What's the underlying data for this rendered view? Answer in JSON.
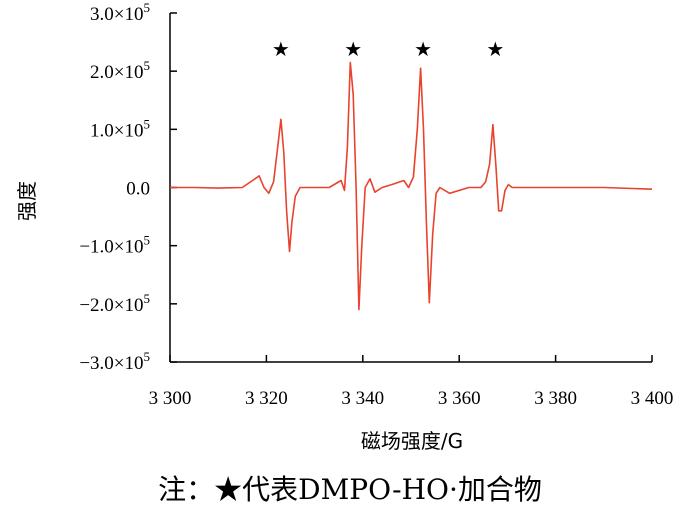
{
  "chart_data": {
    "type": "line",
    "xlabel": "磁场强度/G",
    "ylabel": "强度",
    "xlim": [
      3300,
      3400
    ],
    "ylim": [
      -300000,
      300000
    ],
    "x_ticks": [
      3300,
      3320,
      3340,
      3360,
      3380,
      3400
    ],
    "x_tick_labels": [
      "3 300",
      "3 320",
      "3 340",
      "3 360",
      "3 380",
      "3 400"
    ],
    "y_ticks": [
      300000,
      200000,
      100000,
      0,
      -100000,
      -200000,
      -300000
    ],
    "y_tick_labels": [
      {
        "mantissa": "3.0×10",
        "exp": "5"
      },
      {
        "mantissa": "2.0×10",
        "exp": "5"
      },
      {
        "mantissa": "1.0×10",
        "exp": "5"
      },
      {
        "mantissa": "0.0",
        "exp": ""
      },
      {
        "mantissa": "−1.0×10",
        "exp": "5"
      },
      {
        "mantissa": "−2.0×10",
        "exp": "5"
      },
      {
        "mantissa": "−3.0×10",
        "exp": "5"
      }
    ],
    "line_color": "#e8432d",
    "marker_symbol": "★",
    "marker_x": [
      3323,
      3338,
      3352.5,
      3367.5
    ],
    "series": [
      {
        "x": [
          3300,
          3305,
          3310,
          3315,
          3318.5,
          3319.5,
          3320.5,
          3321.5,
          3322.5,
          3323,
          3323.6,
          3324.2,
          3324.8,
          3325.3,
          3326,
          3327,
          3329,
          3333,
          3335.5,
          3336.2,
          3336.8,
          3337.4,
          3338,
          3338.6,
          3339.2,
          3339.8,
          3340.5,
          3341.5,
          3342.5,
          3344,
          3346,
          3348.5,
          3349.5,
          3350.5,
          3351.3,
          3352,
          3352.6,
          3353.2,
          3353.8,
          3354.5,
          3355.2,
          3356,
          3358,
          3362,
          3364.5,
          3365.5,
          3366.3,
          3367,
          3367.6,
          3368.2,
          3368.8,
          3369.5,
          3370.2,
          3371,
          3373,
          3380,
          3390,
          3400
        ],
        "y": [
          0,
          0,
          -1000,
          0,
          20000,
          0,
          -10000,
          10000,
          80000,
          117000,
          60000,
          -40000,
          -110000,
          -60000,
          -15000,
          0,
          0,
          0,
          12000,
          -5000,
          70000,
          215000,
          160000,
          0,
          -210000,
          -100000,
          0,
          15000,
          -8000,
          0,
          5000,
          12000,
          0,
          18000,
          100000,
          205000,
          100000,
          -60000,
          -198000,
          -80000,
          -10000,
          0,
          -10000,
          0,
          0,
          10000,
          40000,
          108000,
          40000,
          -40000,
          -40000,
          -5000,
          5000,
          0,
          0,
          0,
          0,
          -3000
        ]
      }
    ]
  },
  "note": {
    "prefix": "注：",
    "star": "★",
    "text": "代表DMPO-HO·加合物"
  }
}
